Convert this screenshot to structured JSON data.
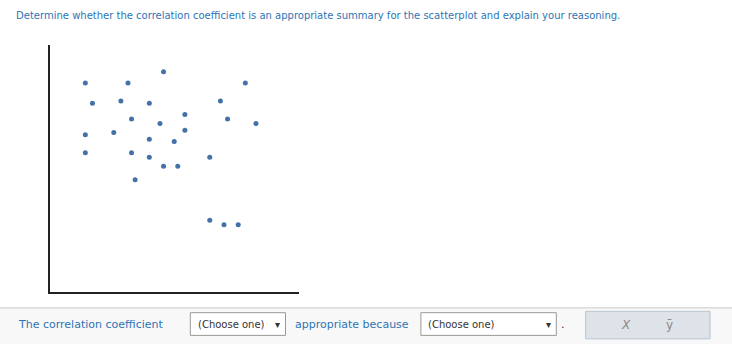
{
  "chart_data": {
    "type": "scatter",
    "title": "Determine whether the correlation coefficient is an appropriate summary for the scatterplot and explain your reasoning.",
    "x": [
      1.0,
      2.2,
      3.2,
      5.5,
      1.2,
      2.0,
      2.8,
      4.8,
      2.3,
      3.1,
      3.8,
      5.0,
      5.8,
      1.0,
      1.8,
      2.8,
      3.5,
      3.8,
      2.3,
      2.8,
      3.2,
      3.6,
      4.5,
      1.0,
      2.4,
      4.5,
      4.9,
      5.3
    ],
    "values": [
      9.3,
      9.3,
      9.8,
      9.3,
      8.4,
      8.5,
      8.4,
      8.5,
      7.7,
      7.5,
      7.9,
      7.7,
      7.5,
      7.0,
      7.1,
      6.8,
      6.7,
      7.2,
      6.2,
      6.0,
      5.6,
      5.6,
      6.0,
      6.2,
      5.0,
      3.2,
      3.0,
      3.0
    ],
    "color": "#4472a8",
    "marker": "circle",
    "xlim": [
      0,
      7
    ],
    "ylim": [
      0,
      11
    ],
    "tick_labels": false,
    "grid": false,
    "annotations": [
      "The correlation coefficient",
      "(Choose one)",
      "▾",
      "appropriate because",
      "(Choose one)",
      "▾",
      ".",
      "X",
      "ȳ"
    ]
  }
}
